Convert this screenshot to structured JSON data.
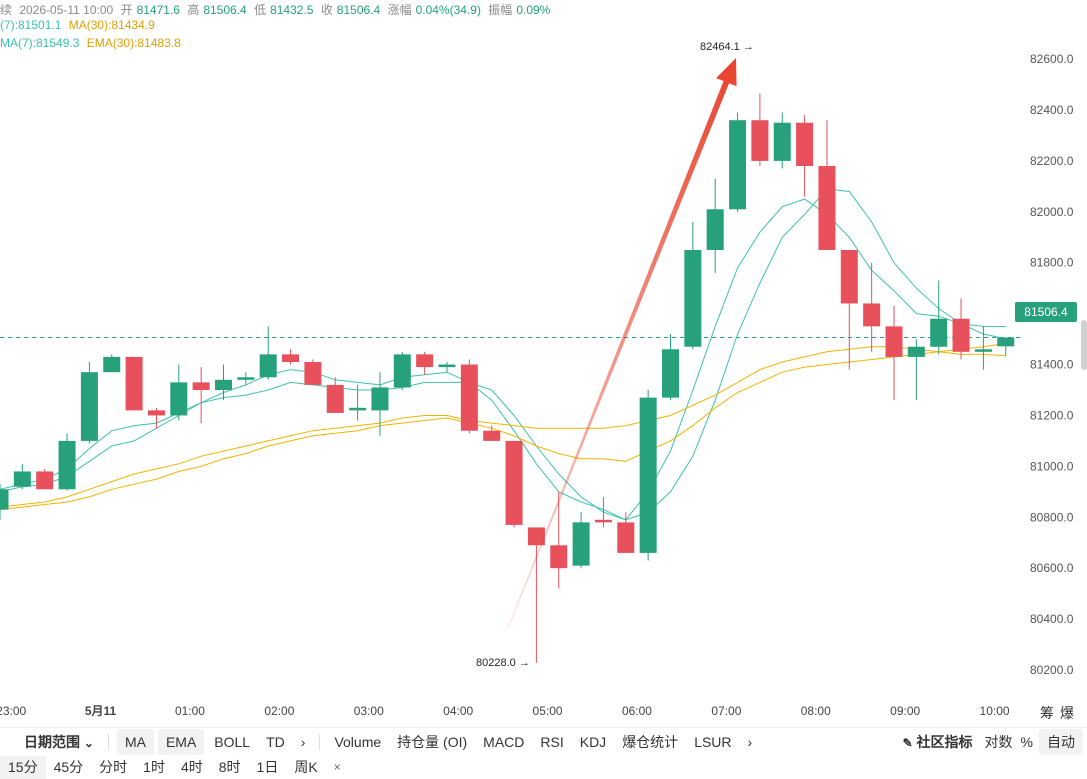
{
  "header": {
    "line1": {
      "status": "持续",
      "datetime": "2026-05-11 10:00",
      "open_label": "开",
      "open": "81471.6",
      "high_label": "高",
      "high": "81506.4",
      "low_label": "低",
      "low": "81432.5",
      "close_label": "收",
      "close": "81506.4",
      "change_label": "涨幅",
      "change": "0.04%(34.9)",
      "amplitude_label": "振幅",
      "amplitude": "0.09%"
    },
    "line2": {
      "ma7": "(7):81501.1",
      "ma30": "MA(30):81434.9"
    },
    "line3": {
      "ema7": "MA(7):81549.3",
      "ema30": "EMA(30):81483.8"
    }
  },
  "annotations": {
    "high_marker": "82464.1 →",
    "low_marker": "80228.0 →",
    "last_price": "81506.4"
  },
  "colors": {
    "up": "#26a17b",
    "down": "#e8505b",
    "ma7": "#3cc2b0",
    "ma30": "#f0b400",
    "arrow": "#e8412c"
  },
  "chart_data": {
    "type": "candlestick",
    "interval": "15分",
    "ylim": [
      80130,
      82650
    ],
    "y_ticks": [
      80200,
      80400,
      80600,
      80800,
      81000,
      81200,
      81400,
      81600,
      81800,
      82000,
      82200,
      82400,
      82600
    ],
    "y_tick_labels": [
      "80200.0",
      "80400.0",
      "80600.0",
      "80800.0",
      "81000.0",
      "81200.0",
      "81400.0",
      "81600.0",
      "81800.0",
      "82000.0",
      "82200.0",
      "82400.0",
      "82600.0"
    ],
    "x_ticks": [
      {
        "index": 0.5,
        "label": "23:00"
      },
      {
        "index": 4.5,
        "label": "5月11",
        "bold": true
      },
      {
        "index": 8.5,
        "label": "01:00"
      },
      {
        "index": 12.5,
        "label": "02:00"
      },
      {
        "index": 16.5,
        "label": "03:00"
      },
      {
        "index": 20.5,
        "label": "04:00"
      },
      {
        "index": 24.5,
        "label": "05:00"
      },
      {
        "index": 28.5,
        "label": "06:00"
      },
      {
        "index": 32.5,
        "label": "07:00"
      },
      {
        "index": 36.5,
        "label": "08:00"
      },
      {
        "index": 40.5,
        "label": "09:00"
      },
      {
        "index": 44.5,
        "label": "10:00"
      }
    ],
    "candles": [
      {
        "o": 80830,
        "h": 80930,
        "l": 80790,
        "c": 80910
      },
      {
        "o": 80920,
        "h": 81010,
        "l": 80910,
        "c": 80980
      },
      {
        "o": 80980,
        "h": 80990,
        "l": 80910,
        "c": 80910
      },
      {
        "o": 80910,
        "h": 81130,
        "l": 80905,
        "c": 81100
      },
      {
        "o": 81100,
        "h": 81410,
        "l": 81090,
        "c": 81370
      },
      {
        "o": 81370,
        "h": 81440,
        "l": 81370,
        "c": 81430
      },
      {
        "o": 81430,
        "h": 81430,
        "l": 81220,
        "c": 81220
      },
      {
        "o": 81220,
        "h": 81230,
        "l": 81150,
        "c": 81200
      },
      {
        "o": 81200,
        "h": 81400,
        "l": 81180,
        "c": 81330
      },
      {
        "o": 81330,
        "h": 81390,
        "l": 81170,
        "c": 81300
      },
      {
        "o": 81300,
        "h": 81400,
        "l": 81260,
        "c": 81340
      },
      {
        "o": 81340,
        "h": 81370,
        "l": 81320,
        "c": 81350
      },
      {
        "o": 81350,
        "h": 81550,
        "l": 81340,
        "c": 81440
      },
      {
        "o": 81440,
        "h": 81460,
        "l": 81400,
        "c": 81410
      },
      {
        "o": 81410,
        "h": 81420,
        "l": 81320,
        "c": 81320
      },
      {
        "o": 81320,
        "h": 81350,
        "l": 81210,
        "c": 81210
      },
      {
        "o": 81220,
        "h": 81320,
        "l": 81180,
        "c": 81230
      },
      {
        "o": 81220,
        "h": 81370,
        "l": 81120,
        "c": 81310
      },
      {
        "o": 81310,
        "h": 81450,
        "l": 81300,
        "c": 81440
      },
      {
        "o": 81440,
        "h": 81450,
        "l": 81360,
        "c": 81390
      },
      {
        "o": 81390,
        "h": 81410,
        "l": 81370,
        "c": 81400
      },
      {
        "o": 81400,
        "h": 81420,
        "l": 81130,
        "c": 81140
      },
      {
        "o": 81140,
        "h": 81160,
        "l": 81100,
        "c": 81100
      },
      {
        "o": 81100,
        "h": 81100,
        "l": 80760,
        "c": 80770
      },
      {
        "o": 80760,
        "h": 80750,
        "l": 80228,
        "c": 80690
      },
      {
        "o": 80690,
        "h": 80900,
        "l": 80520,
        "c": 80600
      },
      {
        "o": 80610,
        "h": 80820,
        "l": 80600,
        "c": 80780
      },
      {
        "o": 80790,
        "h": 80880,
        "l": 80760,
        "c": 80780
      },
      {
        "o": 80780,
        "h": 80820,
        "l": 80660,
        "c": 80660
      },
      {
        "o": 80660,
        "h": 81300,
        "l": 80630,
        "c": 81270
      },
      {
        "o": 81270,
        "h": 81520,
        "l": 81260,
        "c": 81460
      },
      {
        "o": 81470,
        "h": 81960,
        "l": 81460,
        "c": 81850
      },
      {
        "o": 81850,
        "h": 82130,
        "l": 81760,
        "c": 82010
      },
      {
        "o": 82010,
        "h": 82390,
        "l": 82000,
        "c": 82360
      },
      {
        "o": 82360,
        "h": 82464,
        "l": 82180,
        "c": 82200
      },
      {
        "o": 82200,
        "h": 82390,
        "l": 82170,
        "c": 82350
      },
      {
        "o": 82350,
        "h": 82380,
        "l": 82060,
        "c": 82180
      },
      {
        "o": 82180,
        "h": 82360,
        "l": 81850,
        "c": 81850
      },
      {
        "o": 81850,
        "h": 81850,
        "l": 81380,
        "c": 81640
      },
      {
        "o": 81640,
        "h": 81800,
        "l": 81450,
        "c": 81550
      },
      {
        "o": 81550,
        "h": 81630,
        "l": 81260,
        "c": 81430
      },
      {
        "o": 81430,
        "h": 81500,
        "l": 81260,
        "c": 81470
      },
      {
        "o": 81470,
        "h": 81730,
        "l": 81440,
        "c": 81580
      },
      {
        "o": 81580,
        "h": 81660,
        "l": 81420,
        "c": 81450
      },
      {
        "o": 81450,
        "h": 81550,
        "l": 81380,
        "c": 81460
      },
      {
        "o": 81471.6,
        "h": 81506.4,
        "l": 81432.5,
        "c": 81506.4
      }
    ],
    "series": [
      {
        "name": "MA(7)",
        "key": "ma7",
        "values": [
          80900,
          80920,
          80930,
          80960,
          81020,
          81080,
          81100,
          81150,
          81200,
          81250,
          81270,
          81280,
          81300,
          81330,
          81320,
          81310,
          81300,
          81300,
          81310,
          81330,
          81330,
          81330,
          81300,
          81200,
          81080,
          80970,
          80880,
          80820,
          80790,
          80820,
          80900,
          81040,
          81260,
          81520,
          81720,
          81900,
          81990,
          82090,
          82080,
          81960,
          81800,
          81700,
          81620,
          81560,
          81520,
          81501.1
        ]
      },
      {
        "name": "MA(7)",
        "key": "ema7",
        "values": [
          80910,
          80930,
          80950,
          80990,
          81070,
          81140,
          81160,
          81170,
          81210,
          81250,
          81290,
          81320,
          81360,
          81380,
          81370,
          81340,
          81330,
          81320,
          81350,
          81360,
          81370,
          81330,
          81260,
          81140,
          81010,
          80900,
          80860,
          80830,
          80790,
          80900,
          81060,
          81300,
          81550,
          81780,
          81920,
          82020,
          82050,
          81990,
          81900,
          81770,
          81690,
          81600,
          81590,
          81560,
          81550,
          81549.3
        ]
      },
      {
        "name": "MA(30)",
        "key": "ma30",
        "values": [
          80840,
          80850,
          80860,
          80880,
          80910,
          80940,
          80970,
          80990,
          81010,
          81040,
          81060,
          81080,
          81100,
          81120,
          81140,
          81150,
          81160,
          81170,
          81190,
          81200,
          81200,
          81180,
          81170,
          81160,
          81150,
          81150,
          81150,
          81150,
          81160,
          81180,
          81200,
          81240,
          81280,
          81330,
          81380,
          81410,
          81430,
          81450,
          81460,
          81470,
          81470,
          81460,
          81450,
          81440,
          81440,
          81434.9
        ]
      },
      {
        "name": "EMA(30)",
        "key": "ema30",
        "values": [
          80830,
          80840,
          80850,
          80860,
          80880,
          80910,
          80930,
          80950,
          80980,
          81000,
          81030,
          81050,
          81080,
          81100,
          81120,
          81130,
          81140,
          81160,
          81170,
          81180,
          81190,
          81170,
          81150,
          81120,
          81080,
          81050,
          81030,
          81030,
          81020,
          81060,
          81100,
          81160,
          81230,
          81290,
          81330,
          81370,
          81390,
          81400,
          81410,
          81420,
          81430,
          81440,
          81450,
          81460,
          81470,
          81483.8
        ]
      }
    ]
  },
  "toolbar": {
    "date_range": "日期范围",
    "chevron": "⌄",
    "ma": "MA",
    "ema": "EMA",
    "boll": "BOLL",
    "td": "TD",
    "more1": "›",
    "volume": "Volume",
    "oi": "持仓量 (OI)",
    "macd": "MACD",
    "rsi": "RSI",
    "kdj": "KDJ",
    "liq": "爆仓统计",
    "lsur": "LSUR",
    "more2": "›",
    "community": "社区指标",
    "log": "对数",
    "percent": "%",
    "auto": "自动"
  },
  "timebar": {
    "items": [
      "15分",
      "45分",
      "分时",
      "1时",
      "4时",
      "8时",
      "1日",
      "周K"
    ],
    "close": "×"
  },
  "corner": {
    "chip": "筹",
    "burst": "爆"
  }
}
